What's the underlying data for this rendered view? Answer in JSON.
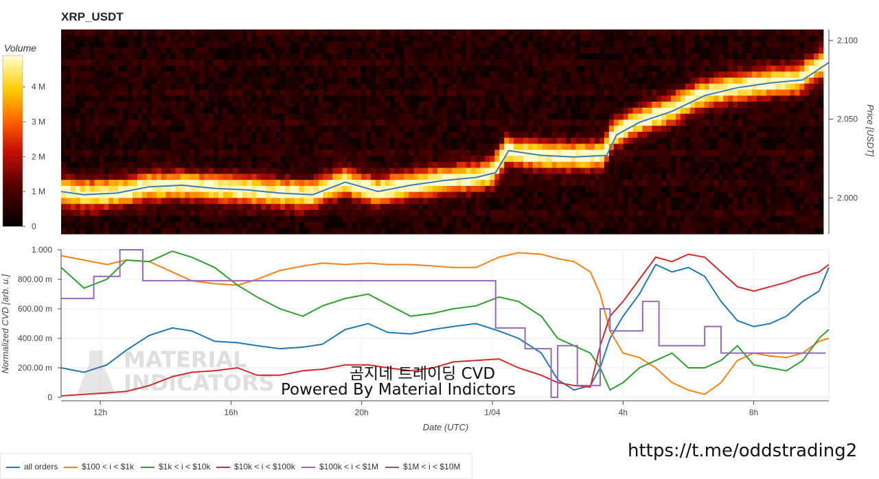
{
  "title": "XRP_USDT",
  "colorbar": {
    "label": "Volume",
    "ticks": [
      "0",
      "1 M",
      "2 M",
      "3 M",
      "4 M"
    ],
    "tick_values": [
      0,
      1,
      2,
      3,
      4
    ],
    "max": 4.9
  },
  "heatmap": {
    "price_axis_label": "Price [USDT]",
    "price_ticks": [
      "2.000",
      "2.050",
      "2.100"
    ],
    "price_tick_values": [
      2.0,
      2.05,
      2.1
    ],
    "price_range": [
      1.977,
      2.107
    ]
  },
  "cvd": {
    "ylabel": "Normalized CVD [arb. u.]",
    "yticks": [
      "0",
      "200.00 m",
      "400.00 m",
      "600.00 m",
      "800.00 m",
      "1.000"
    ],
    "ytick_values": [
      0,
      0.2,
      0.4,
      0.6,
      0.8,
      1.0
    ],
    "xlabel": "Date (UTC)",
    "xticks": [
      "12h",
      "16h",
      "20h",
      "1/04",
      "4h",
      "8h"
    ],
    "xtick_values": [
      12,
      16,
      20,
      24,
      28,
      32
    ]
  },
  "legend": [
    {
      "label": "all orders",
      "color": "#1f77b4"
    },
    {
      "label": "$100 < i < $1k",
      "color": "#ff7f0e"
    },
    {
      "label": "$1k < i < $10k",
      "color": "#2ca02c"
    },
    {
      "label": "$10k < i < $100k",
      "color": "#d62728"
    },
    {
      "label": "$100k < i < $1M",
      "color": "#9467bd"
    },
    {
      "label": "$1M < i < $10M",
      "color": "#8c564b"
    }
  ],
  "watermark": {
    "line1": "MATERIAL",
    "line2": "INDICATORS"
  },
  "overlay": {
    "line1": "곰지네 트레이딩 CVD",
    "line2": "Powered By Material Indictors"
  },
  "url": "https://t.me/oddstrading2",
  "chart_data": [
    {
      "type": "line",
      "title": "XRP_USDT",
      "ylabel": "Price [USDT]",
      "xlabel": "Date (UTC)",
      "ylim": [
        1.977,
        2.107
      ],
      "x": [
        10.8,
        11.5,
        12.5,
        13.5,
        14.5,
        15.5,
        16.5,
        17.5,
        18.5,
        19.5,
        20.5,
        21.5,
        22.5,
        23.5,
        24.1,
        24.5,
        25.5,
        26.5,
        27.5,
        27.8,
        28.5,
        29.5,
        30.5,
        31.5,
        32.5,
        33.5,
        34.3
      ],
      "values": [
        2.004,
        2.002,
        2.003,
        2.007,
        2.008,
        2.006,
        2.005,
        2.003,
        2.002,
        2.01,
        2.004,
        2.008,
        2.011,
        2.013,
        2.016,
        2.03,
        2.027,
        2.026,
        2.027,
        2.04,
        2.048,
        2.055,
        2.065,
        2.07,
        2.073,
        2.075,
        2.086
      ]
    },
    {
      "type": "line",
      "ylabel": "Normalized CVD [arb. u.]",
      "xlabel": "Date (UTC)",
      "ylim": [
        0,
        1.0
      ],
      "series": [
        {
          "name": "all orders",
          "x": [
            10.8,
            11.5,
            12.2,
            12.8,
            13.5,
            14.2,
            14.8,
            15.5,
            16.2,
            16.8,
            17.5,
            18.2,
            18.8,
            19.5,
            20.2,
            20.8,
            21.5,
            22.2,
            22.8,
            23.5,
            24.2,
            24.8,
            25.5,
            26.0,
            26.5,
            27.0,
            27.3,
            27.6,
            28.0,
            28.5,
            29.0,
            29.5,
            30.0,
            30.5,
            31.0,
            31.5,
            32.0,
            32.5,
            33.0,
            33.5,
            34.0,
            34.3
          ],
          "values": [
            0.2,
            0.17,
            0.22,
            0.32,
            0.42,
            0.47,
            0.45,
            0.38,
            0.37,
            0.35,
            0.33,
            0.34,
            0.36,
            0.46,
            0.5,
            0.44,
            0.43,
            0.46,
            0.48,
            0.5,
            0.45,
            0.4,
            0.3,
            0.12,
            0.05,
            0.08,
            0.2,
            0.4,
            0.55,
            0.7,
            0.9,
            0.85,
            0.88,
            0.82,
            0.65,
            0.52,
            0.48,
            0.5,
            0.55,
            0.65,
            0.72,
            0.88
          ]
        },
        {
          "name": "$100 < i < $1k",
          "x": [
            10.8,
            11.5,
            12.2,
            12.8,
            13.5,
            14.2,
            14.8,
            15.5,
            16.2,
            16.8,
            17.5,
            18.2,
            18.8,
            19.5,
            20.2,
            20.8,
            21.5,
            22.2,
            22.8,
            23.5,
            24.2,
            24.8,
            25.5,
            26.0,
            26.5,
            27.0,
            27.3,
            27.6,
            28.0,
            28.5,
            29.0,
            29.5,
            30.0,
            30.5,
            31.0,
            31.5,
            32.0,
            32.5,
            33.0,
            33.5,
            34.0,
            34.3
          ],
          "values": [
            0.96,
            0.93,
            0.9,
            0.93,
            0.92,
            0.85,
            0.79,
            0.77,
            0.76,
            0.8,
            0.86,
            0.89,
            0.91,
            0.9,
            0.91,
            0.9,
            0.9,
            0.89,
            0.88,
            0.88,
            0.95,
            0.98,
            0.97,
            0.94,
            0.92,
            0.85,
            0.7,
            0.45,
            0.3,
            0.27,
            0.2,
            0.1,
            0.05,
            0.02,
            0.1,
            0.25,
            0.3,
            0.28,
            0.27,
            0.3,
            0.38,
            0.4
          ]
        },
        {
          "name": "$1k < i < $10k",
          "x": [
            10.8,
            11.5,
            12.2,
            12.8,
            13.5,
            14.2,
            14.8,
            15.5,
            16.2,
            16.8,
            17.5,
            18.2,
            18.8,
            19.5,
            20.2,
            20.8,
            21.5,
            22.2,
            22.8,
            23.5,
            24.2,
            24.8,
            25.5,
            26.0,
            26.5,
            27.0,
            27.3,
            27.6,
            28.0,
            28.5,
            29.0,
            29.5,
            30.0,
            30.5,
            31.0,
            31.5,
            32.0,
            32.5,
            33.0,
            33.5,
            34.0,
            34.3
          ],
          "values": [
            0.88,
            0.74,
            0.8,
            0.93,
            0.92,
            0.99,
            0.95,
            0.88,
            0.76,
            0.68,
            0.6,
            0.55,
            0.62,
            0.67,
            0.7,
            0.63,
            0.55,
            0.57,
            0.6,
            0.62,
            0.68,
            0.65,
            0.55,
            0.4,
            0.35,
            0.3,
            0.2,
            0.05,
            0.1,
            0.2,
            0.25,
            0.3,
            0.2,
            0.2,
            0.25,
            0.35,
            0.22,
            0.2,
            0.18,
            0.25,
            0.4,
            0.46
          ]
        },
        {
          "name": "$10k < i < $100k",
          "x": [
            10.8,
            11.5,
            12.2,
            12.8,
            13.5,
            14.2,
            14.8,
            15.5,
            16.2,
            16.8,
            17.5,
            18.2,
            18.8,
            19.5,
            20.2,
            20.8,
            21.5,
            22.2,
            22.8,
            23.5,
            24.2,
            24.8,
            25.5,
            26.0,
            26.5,
            27.0,
            27.3,
            27.6,
            28.0,
            28.5,
            29.0,
            29.5,
            30.0,
            30.5,
            31.0,
            31.5,
            32.0,
            32.5,
            33.0,
            33.5,
            34.0,
            34.3
          ],
          "values": [
            0.01,
            0.02,
            0.03,
            0.04,
            0.08,
            0.14,
            0.17,
            0.18,
            0.2,
            0.15,
            0.15,
            0.18,
            0.19,
            0.22,
            0.22,
            0.2,
            0.18,
            0.2,
            0.24,
            0.25,
            0.26,
            0.2,
            0.15,
            0.1,
            0.08,
            0.07,
            0.35,
            0.55,
            0.65,
            0.8,
            0.95,
            0.92,
            0.97,
            0.95,
            0.85,
            0.75,
            0.72,
            0.75,
            0.78,
            0.82,
            0.85,
            0.9
          ]
        },
        {
          "name": "$100k < i < $1M",
          "x": [
            10.8,
            11.8,
            11.8,
            12.6,
            12.6,
            13.3,
            13.3,
            13.7,
            13.7,
            24.1,
            24.1,
            25.0,
            25.0,
            25.8,
            25.8,
            26.0,
            26.0,
            26.6,
            26.6,
            27.3,
            27.3,
            27.6,
            27.6,
            28.2,
            28.2,
            28.6,
            28.6,
            29.1,
            29.1,
            30.5,
            30.5,
            31.0,
            31.0,
            34.2
          ],
          "values": [
            0.67,
            0.67,
            0.82,
            0.82,
            1.0,
            1.0,
            0.79,
            0.79,
            0.79,
            0.79,
            0.47,
            0.47,
            0.33,
            0.33,
            0.0,
            0.0,
            0.35,
            0.35,
            0.08,
            0.08,
            0.6,
            0.6,
            0.45,
            0.45,
            0.45,
            0.45,
            0.65,
            0.65,
            0.35,
            0.35,
            0.48,
            0.48,
            0.3,
            0.3
          ]
        },
        {
          "name": "$1M < i < $10M",
          "x": [],
          "values": []
        }
      ]
    }
  ]
}
